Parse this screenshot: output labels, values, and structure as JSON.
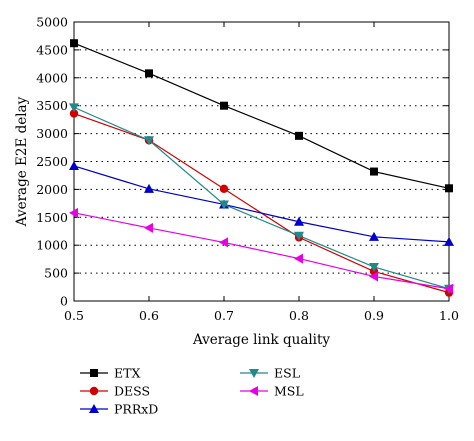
{
  "chart_data": {
    "type": "line",
    "xlabel": "Average link quality",
    "ylabel": "Average E2E delay",
    "xlim": [
      0.5,
      1.0
    ],
    "ylim": [
      0,
      5000
    ],
    "x": [
      0.5,
      0.6,
      0.7,
      0.8,
      0.9,
      1.0
    ],
    "xticks": [
      "0.5",
      "0.6",
      "0.7",
      "0.8",
      "0.9",
      "1.0"
    ],
    "yticks": [
      "0",
      "500",
      "1000",
      "1500",
      "2000",
      "2500",
      "3000",
      "3500",
      "4000",
      "4500",
      "5000"
    ],
    "grid": "horizontal-dotted",
    "legend_position": "below",
    "series": [
      {
        "name": "ETX",
        "color": "#000000",
        "marker": "square",
        "values": [
          4620,
          4080,
          3500,
          2960,
          2320,
          2020
        ]
      },
      {
        "name": "DESS",
        "color": "#d40000",
        "marker": "circle",
        "values": [
          3360,
          2880,
          2010,
          1140,
          530,
          150
        ]
      },
      {
        "name": "PRRxD",
        "color": "#0000cc",
        "marker": "triangle-up",
        "values": [
          2420,
          2010,
          1730,
          1420,
          1150,
          1060
        ]
      },
      {
        "name": "ESL",
        "color": "#1f8a8a",
        "marker": "triangle-down",
        "values": [
          3470,
          2880,
          1730,
          1170,
          610,
          220
        ]
      },
      {
        "name": "MSL",
        "color": "#e600e6",
        "marker": "triangle-left",
        "values": [
          1580,
          1310,
          1050,
          760,
          440,
          220
        ]
      }
    ]
  }
}
